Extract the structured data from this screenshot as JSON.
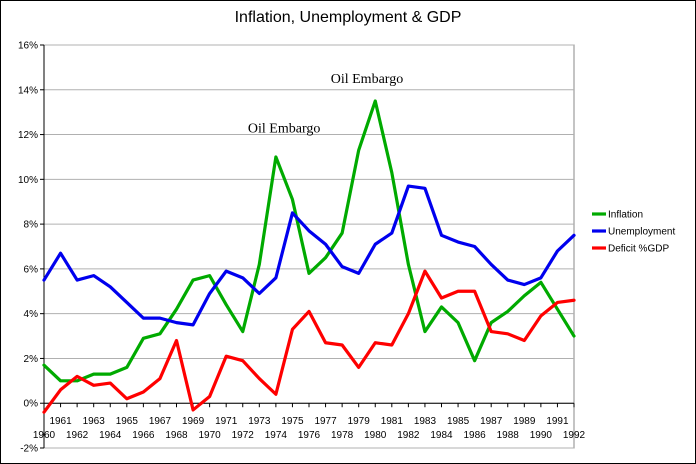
{
  "chart_data": {
    "type": "line",
    "title": "Inflation, Unemployment & GDP",
    "xlabel": "",
    "ylabel": "",
    "x": [
      1960,
      1961,
      1962,
      1963,
      1964,
      1965,
      1966,
      1967,
      1968,
      1969,
      1970,
      1971,
      1972,
      1973,
      1974,
      1975,
      1976,
      1977,
      1978,
      1979,
      1980,
      1981,
      1982,
      1983,
      1984,
      1985,
      1986,
      1987,
      1988,
      1989,
      1990,
      1991,
      1992
    ],
    "x_tick_labels": [
      "1960",
      "1961",
      "1962",
      "1963",
      "1964",
      "1965",
      "1966",
      "1967",
      "1968",
      "1969",
      "1970",
      "1971",
      "1972",
      "1973",
      "1974",
      "1975",
      "1976",
      "1977",
      "1978",
      "1979",
      "1980",
      "1981",
      "1982",
      "1983",
      "1984",
      "1985",
      "1986",
      "1987",
      "1988",
      "1989",
      "1990",
      "1991",
      "1992"
    ],
    "ylim": [
      -2,
      16
    ],
    "y_ticks": [
      -2,
      0,
      2,
      4,
      6,
      8,
      10,
      12,
      14,
      16
    ],
    "y_tick_labels": [
      "-2%",
      "0%",
      "2%",
      "4%",
      "6%",
      "8%",
      "10%",
      "12%",
      "14%",
      "16%"
    ],
    "grid": "horizontal",
    "legend": "right",
    "series": [
      {
        "name": "Inflation",
        "color": "#00aa00",
        "values": [
          1.7,
          1.0,
          1.0,
          1.3,
          1.3,
          1.6,
          2.9,
          3.1,
          4.2,
          5.5,
          5.7,
          4.4,
          3.2,
          6.2,
          11.0,
          9.1,
          5.8,
          6.5,
          7.6,
          11.3,
          13.5,
          10.3,
          6.2,
          3.2,
          4.3,
          3.6,
          1.9,
          3.6,
          4.1,
          4.8,
          5.4,
          4.2,
          3.0
        ]
      },
      {
        "name": "Unemployment",
        "color": "#0000ee",
        "values": [
          5.5,
          6.7,
          5.5,
          5.7,
          5.2,
          4.5,
          3.8,
          3.8,
          3.6,
          3.5,
          4.9,
          5.9,
          5.6,
          4.9,
          5.6,
          8.5,
          7.7,
          7.1,
          6.1,
          5.8,
          7.1,
          7.6,
          9.7,
          9.6,
          7.5,
          7.2,
          7.0,
          6.2,
          5.5,
          5.3,
          5.6,
          6.8,
          7.5
        ]
      },
      {
        "name": "Deficit %GDP",
        "color": "#ff0000",
        "values": [
          -0.4,
          0.6,
          1.2,
          0.8,
          0.9,
          0.2,
          0.5,
          1.1,
          2.8,
          -0.3,
          0.3,
          2.1,
          1.9,
          1.1,
          0.4,
          3.3,
          4.1,
          2.7,
          2.6,
          1.6,
          2.7,
          2.6,
          4.0,
          5.9,
          4.7,
          5.0,
          5.0,
          3.2,
          3.1,
          2.8,
          3.9,
          4.5,
          4.6
        ]
      }
    ],
    "annotations": [
      {
        "text": "Oil Embargo",
        "x": 1974.5,
        "y": 12.1
      },
      {
        "text": "Oil Embargo",
        "x": 1979.5,
        "y": 14.3
      }
    ]
  }
}
